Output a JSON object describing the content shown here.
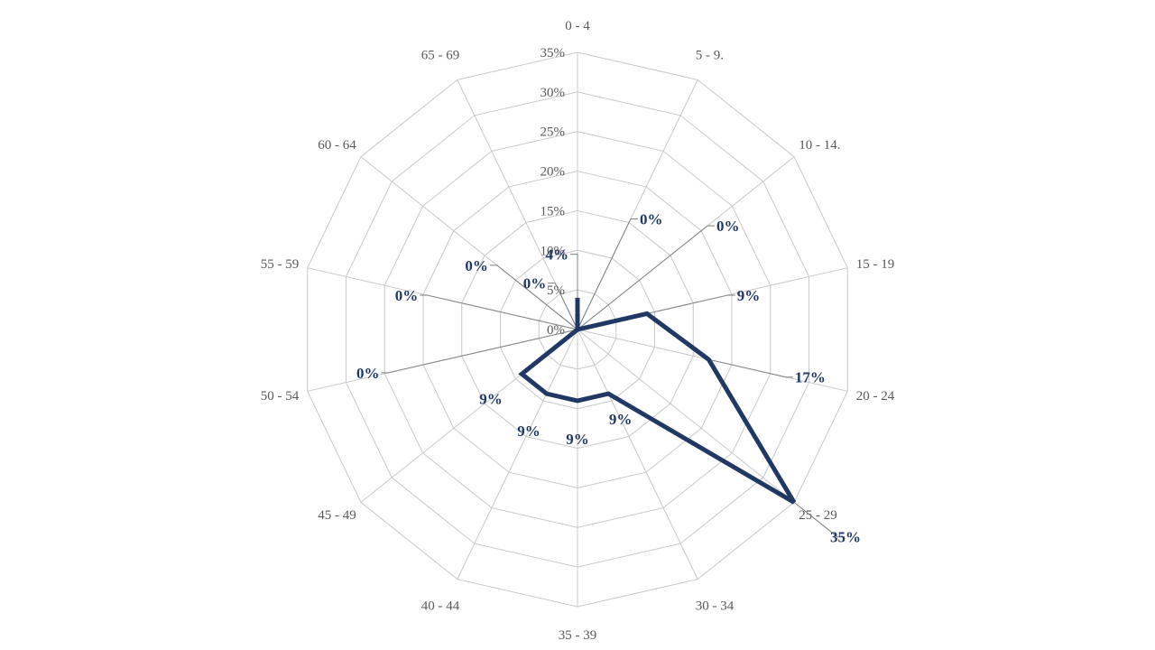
{
  "chart_data": {
    "type": "radar",
    "categories": [
      "0 - 4",
      "5 - 9.",
      "10 - 14.",
      "15 - 19",
      "20 - 24",
      "25 - 29",
      "30 - 34",
      "35 - 39",
      "40 - 44",
      "45 - 49",
      "50 - 54",
      "55 - 59",
      "60 - 64",
      "65 - 69"
    ],
    "series": [
      {
        "values": [
          4,
          0,
          0,
          9,
          17,
          35,
          9,
          9,
          9,
          9,
          0,
          0,
          0,
          0
        ],
        "data_labels": [
          "4%",
          "0%",
          "0%",
          "9%",
          "17%",
          "35%",
          "9%",
          "9%",
          "9%",
          "9%",
          "0%",
          "0%",
          "0%",
          "0%"
        ],
        "color": "#1f3864"
      }
    ],
    "ticks": [
      0,
      5,
      10,
      15,
      20,
      25,
      30,
      35
    ],
    "tick_labels": [
      "0%",
      "5%",
      "10%",
      "15%",
      "20%",
      "25%",
      "30%",
      "35%"
    ],
    "rlim": [
      0,
      35
    ],
    "grid": true,
    "legend": "none"
  }
}
